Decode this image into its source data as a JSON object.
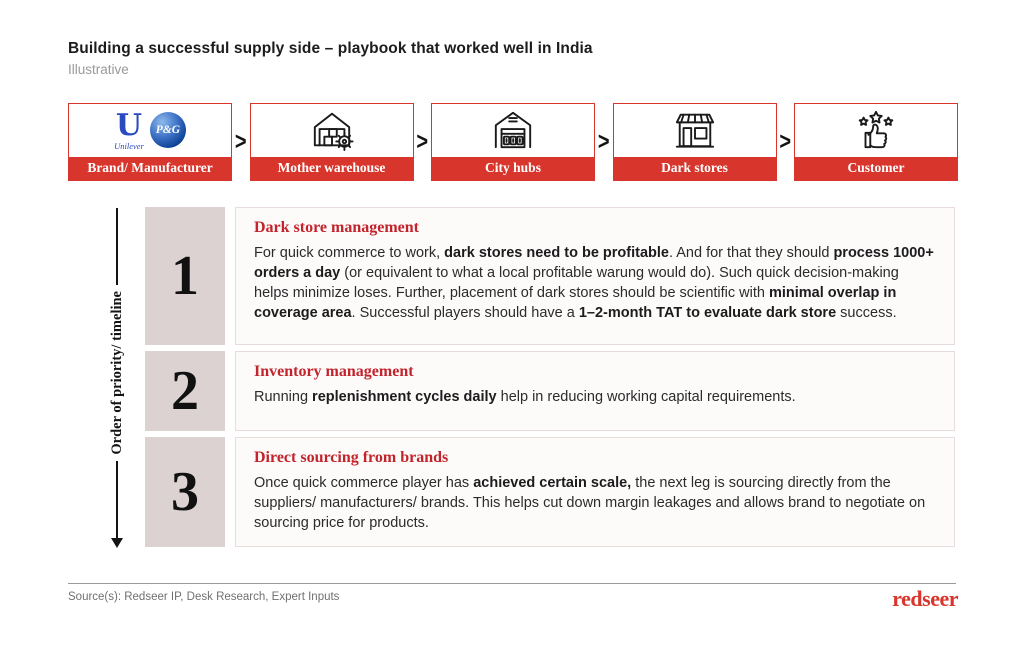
{
  "header": {
    "title": "Building a successful supply side – playbook that worked well in India",
    "subtitle": "Illustrative"
  },
  "flow": {
    "separator": ">",
    "nodes": [
      {
        "label": "Brand/ Manufacturer",
        "icon": "unilever-logo + pg-logo"
      },
      {
        "label": "Mother warehouse",
        "icon": "warehouse-gear-icon"
      },
      {
        "label": "City hubs",
        "icon": "city-hub-icon"
      },
      {
        "label": "Dark stores",
        "icon": "storefront-icon"
      },
      {
        "label": "Customer",
        "icon": "thumbs-up-stars-icon"
      }
    ],
    "logos": {
      "unilever_letter": "U",
      "unilever_script": "Unilever",
      "pg": "P&G"
    }
  },
  "timeline_axis": {
    "label": "Order of priority/ timeline"
  },
  "sections": [
    {
      "number": "1",
      "heading": "Dark store management",
      "body": [
        {
          "t": "For quick commerce to work, ",
          "b": false
        },
        {
          "t": "dark stores need to be profitable",
          "b": true
        },
        {
          "t": ". And for that they should ",
          "b": false
        },
        {
          "t": "process 1000+ orders a day",
          "b": true
        },
        {
          "t": " (or equivalent to what a local profitable warung would do). Such quick decision-making helps minimize loses. Further, placement of dark stores should be scientific with ",
          "b": false
        },
        {
          "t": "minimal overlap in coverage area",
          "b": true
        },
        {
          "t": ". Successful players should have a ",
          "b": false
        },
        {
          "t": "1–2-month TAT to evaluate dark store",
          "b": true
        },
        {
          "t": " success.",
          "b": false
        }
      ]
    },
    {
      "number": "2",
      "heading": "Inventory management",
      "body": [
        {
          "t": "Running ",
          "b": false
        },
        {
          "t": "replenishment cycles daily",
          "b": true
        },
        {
          "t": " help in reducing working capital requirements.",
          "b": false
        }
      ]
    },
    {
      "number": "3",
      "heading": "Direct sourcing from brands",
      "body": [
        {
          "t": "Once quick commerce player has ",
          "b": false
        },
        {
          "t": "achieved certain scale,",
          "b": true
        },
        {
          "t": " the next leg is sourcing directly from the suppliers/ manufacturers/ brands. This helps cut down margin leakages and allows brand to negotiate on sourcing price for products.",
          "b": false
        }
      ]
    }
  ],
  "footer": {
    "source": "Source(s): Redseer IP, Desk Research, Expert Inputs",
    "logo_text": "redseer"
  },
  "colors": {
    "brand_red": "#d8352c",
    "heading_red": "#c2242c",
    "number_block_bg": "#ddd2d2",
    "content_box_bg": "#fdfafa",
    "content_box_border": "#e8dcdc",
    "unilever_blue": "#2a4bc0",
    "pg_blue": "#0b3f93"
  }
}
